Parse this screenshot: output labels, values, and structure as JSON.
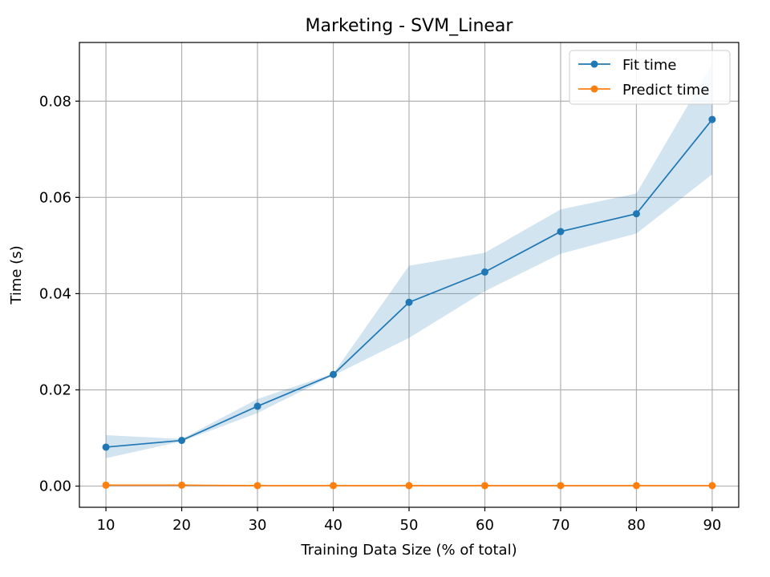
{
  "chart_data": {
    "type": "line",
    "title": "Marketing - SVM_Linear",
    "xlabel": "Training Data Size (% of total)",
    "ylabel": "Time (s)",
    "x": [
      10,
      20,
      30,
      40,
      50,
      60,
      70,
      80,
      90
    ],
    "xlim": [
      6.5,
      93.5
    ],
    "ylim": [
      -0.0044,
      0.0922
    ],
    "x_ticks": [
      10,
      20,
      30,
      40,
      50,
      60,
      70,
      80,
      90
    ],
    "y_ticks": [
      0.0,
      0.02,
      0.04,
      0.06,
      0.08
    ],
    "y_tick_labels": [
      "0.00",
      "0.02",
      "0.04",
      "0.06",
      "0.08"
    ],
    "grid": true,
    "legend_position": "top-right",
    "series": [
      {
        "name": "Fit time",
        "color": "#1f77b4",
        "values": [
          0.0081,
          0.0095,
          0.0166,
          0.0232,
          0.0382,
          0.0445,
          0.0529,
          0.0566,
          0.0762
        ],
        "band_lower": [
          0.0058,
          0.0093,
          0.0152,
          0.023,
          0.0308,
          0.0405,
          0.0483,
          0.0525,
          0.0648
        ],
        "band_upper": [
          0.0106,
          0.0098,
          0.0181,
          0.0234,
          0.0458,
          0.0485,
          0.0575,
          0.0608,
          0.0878
        ]
      },
      {
        "name": "Predict time",
        "color": "#ff7f0e",
        "values": [
          0.0002,
          0.0002,
          0.0001,
          0.0001,
          0.0001,
          0.0001,
          0.0001,
          0.0001,
          0.0001
        ],
        "band_lower": [
          0.0001,
          0.0001,
          0.0001,
          0.0001,
          0.0001,
          0.0001,
          0.0001,
          0.0001,
          0.0001
        ],
        "band_upper": [
          0.0003,
          0.0003,
          0.0002,
          0.0002,
          0.0002,
          0.0002,
          0.0002,
          0.0001,
          0.0001
        ]
      }
    ]
  }
}
